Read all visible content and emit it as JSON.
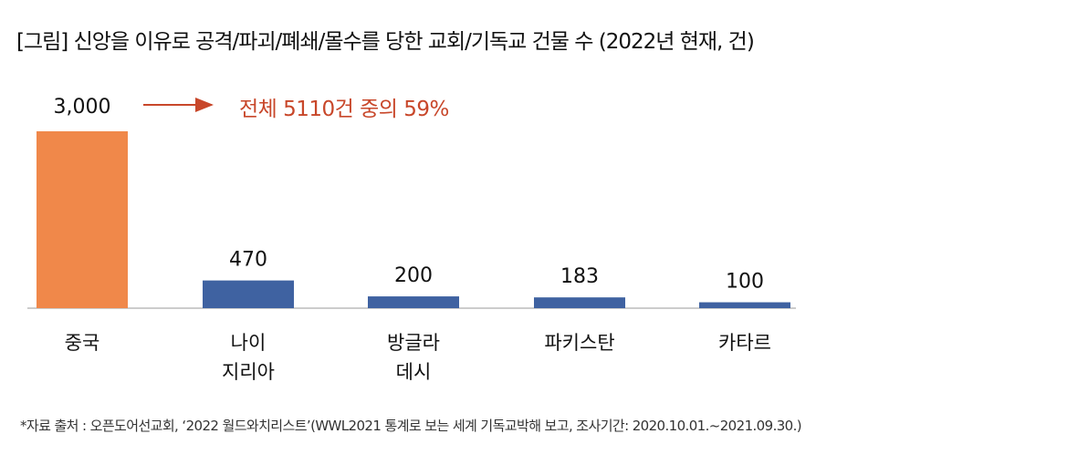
{
  "chart_data": {
    "type": "bar",
    "title": "[그림] 신앙을 이유로 공격/파괴/폐쇄/몰수를 당한 교회/기독교 건물 수 (2022년 현재, 건)",
    "categories": [
      [
        "중국"
      ],
      [
        "나이",
        "지리아"
      ],
      [
        "방글라",
        "데시"
      ],
      [
        "파키스탄"
      ],
      [
        "카타르"
      ]
    ],
    "values": [
      3000,
      470,
      200,
      183,
      100
    ],
    "data_labels": [
      "3,000",
      "470",
      "200",
      "183",
      "100"
    ],
    "colors": [
      "#F0884A",
      "#3F62A1",
      "#3F62A1",
      "#3F62A1",
      "#3F62A1"
    ],
    "annotation": "전체 5110건 중의 59%",
    "annotation_color": "#C8472A",
    "ylim": [
      0,
      3000
    ],
    "grid": false,
    "source": "*자료 출처 : 오픈도어선교회, ‘2022 월드와치리스트’(WWL2021 통계로 보는 세계 기독교박해 보고, 조사기간: 2020.10.01.~2021.09.30.)"
  }
}
